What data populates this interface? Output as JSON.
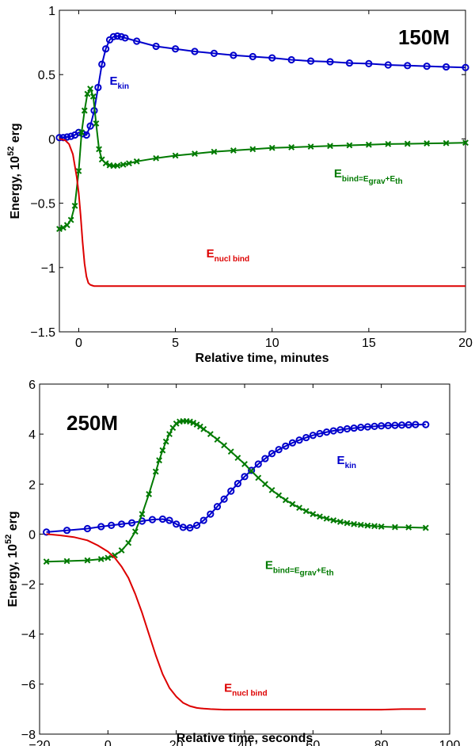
{
  "chart_data": [
    {
      "type": "line",
      "panel_label": "150M",
      "xlabel": "Relative time, minutes",
      "ylabel_main": "Energy, 10",
      "ylabel_sup": "52",
      "ylabel_unit": " erg",
      "xlim": [
        -1,
        20
      ],
      "ylim": [
        -1.5,
        1
      ],
      "xticks": [
        0,
        5,
        10,
        15,
        20
      ],
      "xtick_labels": [
        "0",
        "5",
        "10",
        "15",
        "20"
      ],
      "yticks": [
        -1.5,
        -1,
        -0.5,
        0,
        0.5,
        1
      ],
      "ytick_labels": [
        "−1.5",
        "−1",
        "−0.5",
        "0",
        "0.5",
        "1"
      ],
      "annotations": [
        {
          "key": "kin",
          "color": "#0000cc",
          "text": "E",
          "sub": "kin",
          "x": 1.6,
          "y": 0.42
        },
        {
          "key": "bind",
          "color": "#007a00",
          "text": "E",
          "sub": "bind=E",
          "sub2": "grav",
          "plus": "+E",
          "sub3": "th",
          "x": 13.2,
          "y": -0.3
        },
        {
          "key": "nucl",
          "color": "#dd0000",
          "text": "E",
          "sub": "nucl bind",
          "x": 6.6,
          "y": -0.92
        }
      ],
      "series": [
        {
          "name": "E kin",
          "color": "#0000cc",
          "marker": "o",
          "x": [
            -1,
            -0.8,
            -0.6,
            -0.4,
            -0.2,
            0,
            0.2,
            0.4,
            0.6,
            0.8,
            1.0,
            1.2,
            1.4,
            1.6,
            1.8,
            2.0,
            2.2,
            2.4,
            3,
            4,
            5,
            6,
            7,
            8,
            9,
            10,
            11,
            12,
            13,
            14,
            15,
            16,
            17,
            18,
            19,
            20
          ],
          "y": [
            0.01,
            0.01,
            0.015,
            0.02,
            0.03,
            0.05,
            0.04,
            0.03,
            0.1,
            0.22,
            0.4,
            0.58,
            0.7,
            0.77,
            0.795,
            0.8,
            0.795,
            0.785,
            0.76,
            0.72,
            0.7,
            0.68,
            0.665,
            0.65,
            0.64,
            0.63,
            0.615,
            0.605,
            0.6,
            0.59,
            0.585,
            0.575,
            0.57,
            0.565,
            0.56,
            0.555
          ]
        },
        {
          "name": "E bind",
          "color": "#007a00",
          "marker": "x",
          "x": [
            -1,
            -0.8,
            -0.6,
            -0.4,
            -0.2,
            0,
            0.15,
            0.3,
            0.45,
            0.6,
            0.75,
            0.9,
            1.05,
            1.2,
            1.4,
            1.6,
            1.8,
            2.0,
            2.3,
            2.6,
            3,
            4,
            5,
            6,
            7,
            8,
            9,
            10,
            11,
            12,
            13,
            14,
            15,
            16,
            17,
            18,
            19,
            20
          ],
          "y": [
            -0.7,
            -0.69,
            -0.67,
            -0.63,
            -0.52,
            -0.25,
            0.05,
            0.22,
            0.35,
            0.39,
            0.33,
            0.12,
            -0.08,
            -0.16,
            -0.19,
            -0.205,
            -0.21,
            -0.208,
            -0.2,
            -0.19,
            -0.175,
            -0.15,
            -0.13,
            -0.115,
            -0.1,
            -0.09,
            -0.08,
            -0.07,
            -0.065,
            -0.06,
            -0.055,
            -0.05,
            -0.045,
            -0.04,
            -0.038,
            -0.035,
            -0.033,
            -0.03
          ]
        },
        {
          "name": "E nucl bind",
          "color": "#dd0000",
          "marker": "none",
          "x": [
            -1,
            -0.7,
            -0.5,
            -0.3,
            -0.1,
            0,
            0.1,
            0.2,
            0.3,
            0.4,
            0.5,
            0.6,
            0.7,
            0.8,
            1.0,
            1.5,
            2.0,
            3,
            5,
            10,
            15,
            20
          ],
          "y": [
            0.0,
            -0.01,
            -0.04,
            -0.12,
            -0.3,
            -0.42,
            -0.6,
            -0.8,
            -0.97,
            -1.07,
            -1.12,
            -1.135,
            -1.14,
            -1.145,
            -1.145,
            -1.145,
            -1.145,
            -1.145,
            -1.145,
            -1.145,
            -1.145,
            -1.145
          ]
        }
      ]
    },
    {
      "type": "line",
      "panel_label": "250M",
      "xlabel": "Relative time, seconds",
      "ylabel_main": "Energy, 10",
      "ylabel_sup": "52",
      "ylabel_unit": " erg",
      "xlim": [
        -20,
        100
      ],
      "ylim": [
        -8,
        6
      ],
      "xticks": [
        -20,
        0,
        20,
        40,
        60,
        80,
        100
      ],
      "xtick_labels": [
        "−20",
        "0",
        "20",
        "40",
        "60",
        "80",
        "100"
      ],
      "yticks": [
        -8,
        -6,
        -4,
        -2,
        0,
        2,
        4,
        6
      ],
      "ytick_labels": [
        "−8",
        "−6",
        "−4",
        "−2",
        "0",
        "2",
        "4",
        "6"
      ],
      "annotations": [
        {
          "key": "kin",
          "color": "#0000cc",
          "text": "E",
          "sub": "kin",
          "x": 67,
          "y": 2.8
        },
        {
          "key": "bind",
          "color": "#007a00",
          "text": "E",
          "sub": "bind=E",
          "sub2": "grav",
          "plus": "+E",
          "sub3": "th",
          "x": 46,
          "y": -1.4
        },
        {
          "key": "nucl",
          "color": "#dd0000",
          "text": "E",
          "sub": "nucl bind",
          "x": 34,
          "y": -6.3
        }
      ],
      "series": [
        {
          "name": "E kin",
          "color": "#0000cc",
          "marker": "o",
          "x": [
            -18,
            -12,
            -6,
            -2,
            1,
            4,
            7,
            10,
            13,
            16,
            18,
            20,
            22,
            24,
            26,
            28,
            30,
            32,
            34,
            36,
            38,
            40,
            42,
            44,
            46,
            48,
            50,
            52,
            54,
            56,
            58,
            60,
            62,
            64,
            66,
            68,
            70,
            72,
            74,
            76,
            78,
            80,
            82,
            84,
            86,
            88,
            90,
            93
          ],
          "y": [
            0.08,
            0.15,
            0.22,
            0.3,
            0.35,
            0.4,
            0.45,
            0.52,
            0.58,
            0.6,
            0.55,
            0.4,
            0.27,
            0.25,
            0.35,
            0.55,
            0.8,
            1.1,
            1.4,
            1.72,
            2.02,
            2.3,
            2.55,
            2.8,
            3.02,
            3.22,
            3.38,
            3.52,
            3.65,
            3.76,
            3.86,
            3.95,
            4.02,
            4.08,
            4.13,
            4.17,
            4.21,
            4.24,
            4.27,
            4.29,
            4.31,
            4.33,
            4.34,
            4.35,
            4.36,
            4.37,
            4.38,
            4.38
          ]
        },
        {
          "name": "E bind",
          "color": "#007a00",
          "marker": "x",
          "x": [
            -18,
            -12,
            -6,
            -2,
            0,
            2,
            4,
            6,
            8,
            10,
            12,
            14,
            15,
            16,
            17,
            18,
            19,
            20,
            21,
            22,
            23,
            24,
            25,
            26,
            27,
            28,
            30,
            32,
            34,
            36,
            38,
            40,
            42,
            44,
            46,
            48,
            50,
            52,
            54,
            56,
            58,
            60,
            62,
            64,
            66,
            68,
            70,
            72,
            74,
            76,
            78,
            80,
            84,
            88,
            93
          ],
          "y": [
            -1.1,
            -1.08,
            -1.05,
            -1.0,
            -0.95,
            -0.85,
            -0.65,
            -0.35,
            0.1,
            0.8,
            1.6,
            2.5,
            2.95,
            3.35,
            3.7,
            4.0,
            4.25,
            4.42,
            4.5,
            4.52,
            4.52,
            4.5,
            4.45,
            4.38,
            4.3,
            4.2,
            4.0,
            3.78,
            3.55,
            3.3,
            3.05,
            2.8,
            2.52,
            2.25,
            2.0,
            1.76,
            1.55,
            1.36,
            1.2,
            1.05,
            0.92,
            0.8,
            0.7,
            0.62,
            0.55,
            0.49,
            0.44,
            0.4,
            0.37,
            0.34,
            0.32,
            0.3,
            0.28,
            0.27,
            0.25
          ]
        },
        {
          "name": "E nucl bind",
          "color": "#dd0000",
          "marker": "none",
          "x": [
            -18,
            -14,
            -10,
            -6,
            -3,
            0,
            2,
            4,
            6,
            8,
            10,
            12,
            14,
            16,
            18,
            20,
            22,
            24,
            26,
            28,
            30,
            34,
            40,
            50,
            60,
            70,
            80,
            86,
            90,
            93
          ],
          "y": [
            0.0,
            -0.05,
            -0.12,
            -0.25,
            -0.45,
            -0.7,
            -0.95,
            -1.3,
            -1.75,
            -2.4,
            -3.15,
            -4.0,
            -4.85,
            -5.6,
            -6.15,
            -6.5,
            -6.75,
            -6.88,
            -6.95,
            -6.98,
            -7.0,
            -7.02,
            -7.02,
            -7.02,
            -7.02,
            -7.02,
            -7.02,
            -7.0,
            -7.0,
            -7.0
          ]
        }
      ]
    }
  ]
}
